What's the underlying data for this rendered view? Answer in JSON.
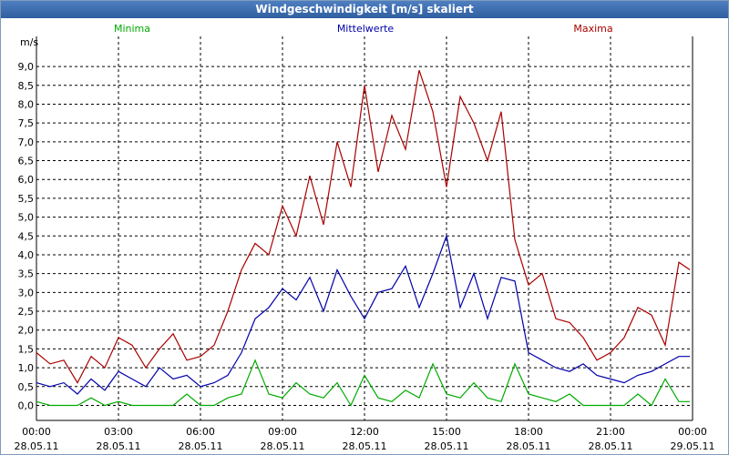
{
  "window": {
    "title": "Windgeschwindigkeit [m/s] skaliert"
  },
  "chart_data": {
    "type": "line",
    "title": "Windgeschwindigkeit [m/s] skaliert",
    "ylabel": "m/s",
    "xlabel": "",
    "ylim": [
      -0.4,
      9.8
    ],
    "xlim": [
      0,
      24
    ],
    "grid": true,
    "legend": "top",
    "yticks": [
      0,
      0.5,
      1.0,
      1.5,
      2.0,
      2.5,
      3.0,
      3.5,
      4.0,
      4.5,
      5.0,
      5.5,
      6.0,
      6.5,
      7.0,
      7.5,
      8.0,
      8.5,
      9.0
    ],
    "ytick_labels": [
      "0,0",
      "0,5",
      "1,0",
      "1,5",
      "2,0",
      "2,5",
      "3,0",
      "3,5",
      "4,0",
      "4,5",
      "5,0",
      "5,5",
      "6,0",
      "6,5",
      "7,0",
      "7,5",
      "8,0",
      "8,5",
      "9,0"
    ],
    "xticks": [
      {
        "hour": 0,
        "time": "00:00",
        "date": "28.05.11"
      },
      {
        "hour": 3,
        "time": "03:00",
        "date": "28.05.11"
      },
      {
        "hour": 6,
        "time": "06:00",
        "date": "28.05.11"
      },
      {
        "hour": 9,
        "time": "09:00",
        "date": "28.05.11"
      },
      {
        "hour": 12,
        "time": "12:00",
        "date": "28.05.11"
      },
      {
        "hour": 15,
        "time": "15:00",
        "date": "28.05.11"
      },
      {
        "hour": 18,
        "time": "18:00",
        "date": "28.05.11"
      },
      {
        "hour": 21,
        "time": "21:00",
        "date": "28.05.11"
      },
      {
        "hour": 24,
        "time": "00:00",
        "date": "29.05.11"
      }
    ],
    "series": [
      {
        "name": "Minima",
        "color": "#00aa00",
        "x": [
          0,
          0.5,
          1,
          1.5,
          2,
          2.5,
          3,
          3.5,
          4,
          4.5,
          5,
          5.5,
          6,
          6.5,
          7,
          7.5,
          8,
          8.5,
          9,
          9.5,
          10,
          10.5,
          11,
          11.5,
          12,
          12.5,
          13,
          13.5,
          14,
          14.5,
          15,
          15.5,
          16,
          16.5,
          17,
          17.5,
          18,
          18.5,
          19,
          19.5,
          20,
          20.5,
          21,
          21.5,
          22,
          22.5,
          23,
          23.5,
          23.9
        ],
        "values": [
          0.1,
          0.0,
          0.0,
          0.0,
          0.2,
          0.0,
          0.1,
          0.0,
          0.0,
          0.0,
          0.0,
          0.3,
          0.0,
          0.0,
          0.2,
          0.3,
          1.2,
          0.3,
          0.2,
          0.6,
          0.3,
          0.2,
          0.6,
          0.0,
          0.8,
          0.2,
          0.1,
          0.4,
          0.2,
          1.1,
          0.3,
          0.2,
          0.6,
          0.2,
          0.1,
          1.1,
          0.3,
          0.2,
          0.1,
          0.3,
          0.0,
          0.0,
          0.0,
          0.0,
          0.3,
          0.0,
          0.7,
          0.1,
          0.1
        ]
      },
      {
        "name": "Mittelwerte",
        "color": "#0000aa",
        "x": [
          0,
          0.5,
          1,
          1.5,
          2,
          2.5,
          3,
          3.5,
          4,
          4.5,
          5,
          5.5,
          6,
          6.5,
          7,
          7.5,
          8,
          8.5,
          9,
          9.5,
          10,
          10.5,
          11,
          11.5,
          12,
          12.5,
          13,
          13.5,
          14,
          14.5,
          15,
          15.5,
          16,
          16.5,
          17,
          17.5,
          18,
          18.5,
          19,
          19.5,
          20,
          20.5,
          21,
          21.5,
          22,
          22.5,
          23,
          23.5,
          23.9
        ],
        "values": [
          0.6,
          0.5,
          0.6,
          0.3,
          0.7,
          0.4,
          0.9,
          0.7,
          0.5,
          1.0,
          0.7,
          0.8,
          0.5,
          0.6,
          0.8,
          1.4,
          2.3,
          2.6,
          3.1,
          2.8,
          3.4,
          2.5,
          3.6,
          2.9,
          2.3,
          3.0,
          3.1,
          3.7,
          2.6,
          3.5,
          4.5,
          2.6,
          3.5,
          2.3,
          3.4,
          3.3,
          1.4,
          1.2,
          1.0,
          0.9,
          1.1,
          0.8,
          0.7,
          0.6,
          0.8,
          0.9,
          1.1,
          1.3,
          1.3
        ]
      },
      {
        "name": "Maxima",
        "color": "#aa0000",
        "x": [
          0,
          0.5,
          1,
          1.5,
          2,
          2.5,
          3,
          3.5,
          4,
          4.5,
          5,
          5.5,
          6,
          6.5,
          7,
          7.5,
          8,
          8.5,
          9,
          9.5,
          10,
          10.5,
          11,
          11.5,
          12,
          12.5,
          13,
          13.5,
          14,
          14.5,
          15,
          15.5,
          16,
          16.5,
          17,
          17.5,
          18,
          18.5,
          19,
          19.5,
          20,
          20.5,
          21,
          21.5,
          22,
          22.5,
          23,
          23.5,
          23.9
        ],
        "values": [
          1.4,
          1.1,
          1.2,
          0.6,
          1.3,
          1.0,
          1.8,
          1.6,
          1.0,
          1.5,
          1.9,
          1.2,
          1.3,
          1.6,
          2.5,
          3.6,
          4.3,
          4.0,
          5.3,
          4.5,
          6.1,
          4.8,
          7.0,
          5.8,
          8.5,
          6.2,
          7.7,
          6.8,
          8.9,
          7.8,
          5.8,
          8.2,
          7.5,
          6.5,
          7.8,
          4.4,
          3.2,
          3.5,
          2.3,
          2.2,
          1.8,
          1.2,
          1.4,
          1.8,
          2.6,
          2.4,
          1.6,
          3.8,
          3.6
        ]
      }
    ]
  }
}
